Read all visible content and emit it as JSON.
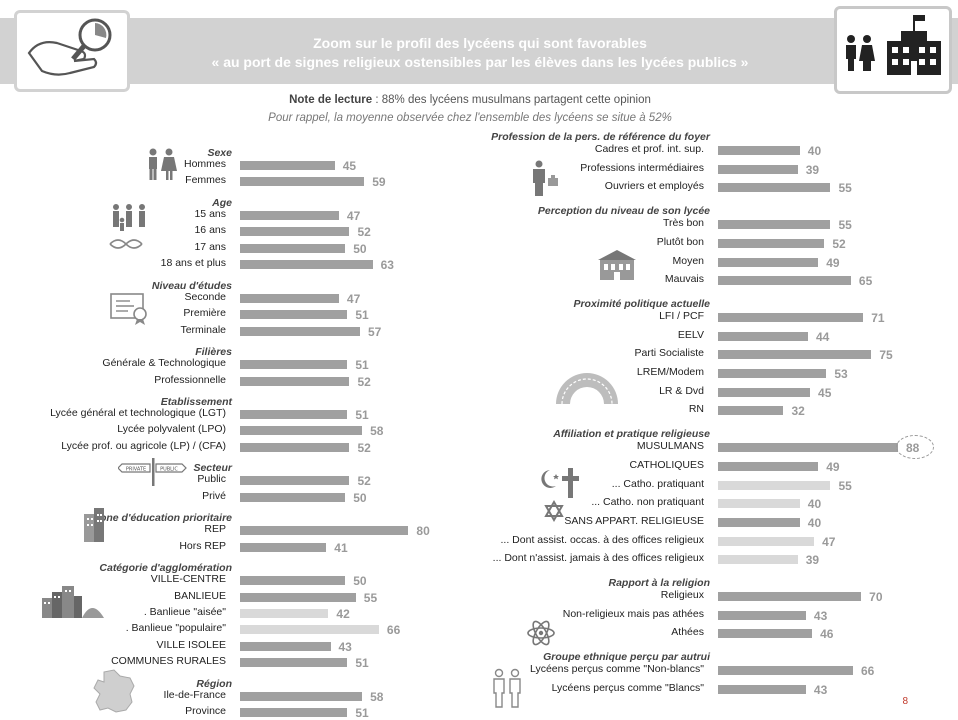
{
  "header": {
    "title_line1": "Zoom sur le profil des lycéens qui sont favorables",
    "title_line2": "« au port de signes religieux ostensibles par les élèves dans les lycées publics »"
  },
  "note": {
    "label": "Note de lecture",
    "text": " : 88% des lycéens musulmans partagent cette opinion",
    "reminder": "Pour rappel, la moyenne observée chez l'ensemble des lycéens se situe à 52%"
  },
  "page_number": "8",
  "chart_data": {
    "type": "bar",
    "orientation": "horizontal",
    "value_unit": "%",
    "xlim": [
      0,
      100
    ],
    "panels": [
      {
        "side": "left",
        "groups": [
          {
            "title": "Sexe",
            "rows": [
              {
                "label": "Hommes",
                "value": 45
              },
              {
                "label": "Femmes",
                "value": 59
              }
            ]
          },
          {
            "title": "Age",
            "rows": [
              {
                "label": "15 ans",
                "value": 47
              },
              {
                "label": "16 ans",
                "value": 52
              },
              {
                "label": "17 ans",
                "value": 50
              },
              {
                "label": "18 ans et plus",
                "value": 63
              }
            ]
          },
          {
            "title": "Niveau d'études",
            "rows": [
              {
                "label": "Seconde",
                "value": 47
              },
              {
                "label": "Première",
                "value": 51
              },
              {
                "label": "Terminale",
                "value": 57
              }
            ]
          },
          {
            "title": "Filières",
            "rows": [
              {
                "label": "Générale & Technologique",
                "value": 51
              },
              {
                "label": "Professionnelle",
                "value": 52
              }
            ]
          },
          {
            "title": "Etablissement",
            "rows": [
              {
                "label": "Lycée général et technologique (LGT)",
                "value": 51
              },
              {
                "label": "Lycée polyvalent (LPO)",
                "value": 58
              },
              {
                "label": "Lycée prof. ou agricole (LP) / (CFA)",
                "value": 52
              }
            ]
          },
          {
            "title": "Secteur",
            "rows": [
              {
                "label": "Public",
                "value": 52
              },
              {
                "label": "Privé",
                "value": 50
              }
            ]
          },
          {
            "title": "Zone d'éducation prioritaire",
            "rows": [
              {
                "label": "REP",
                "value": 80
              },
              {
                "label": "Hors REP",
                "value": 41
              }
            ]
          },
          {
            "title": "Catégorie d'agglomération",
            "rows": [
              {
                "label": "VILLE-CENTRE",
                "value": 50
              },
              {
                "label": "BANLIEUE",
                "value": 55
              },
              {
                "label": ". Banlieue \"aisée\"",
                "value": 42,
                "sub": true
              },
              {
                "label": ". Banlieue \"populaire\"",
                "value": 66,
                "sub": true
              },
              {
                "label": "VILLE ISOLEE",
                "value": 43
              },
              {
                "label": "COMMUNES RURALES",
                "value": 51
              }
            ]
          },
          {
            "title": "Région",
            "rows": [
              {
                "label": "Ile-de-France",
                "value": 58
              },
              {
                "label": "Province",
                "value": 51
              }
            ]
          }
        ]
      },
      {
        "side": "right",
        "groups": [
          {
            "title": "Profession de la pers. de référence du foyer",
            "rows": [
              {
                "label": "Cadres et prof. int. sup.",
                "value": 40
              },
              {
                "label": "Professions intermédiaires",
                "value": 39
              },
              {
                "label": "Ouvriers et employés",
                "value": 55
              }
            ]
          },
          {
            "title": "Perception du niveau de son lycée",
            "rows": [
              {
                "label": "Très bon",
                "value": 55
              },
              {
                "label": "Plutôt bon",
                "value": 52
              },
              {
                "label": "Moyen",
                "value": 49
              },
              {
                "label": "Mauvais",
                "value": 65
              }
            ]
          },
          {
            "title": "Proximité politique actuelle",
            "rows": [
              {
                "label": "LFI / PCF",
                "value": 71
              },
              {
                "label": "EELV",
                "value": 44
              },
              {
                "label": "Parti Socialiste",
                "value": 75
              },
              {
                "label": "LREM/Modem",
                "value": 53
              },
              {
                "label": "LR & Dvd",
                "value": 45
              },
              {
                "label": "RN",
                "value": 32
              }
            ]
          },
          {
            "title": "Affiliation et pratique religieuse",
            "rows": [
              {
                "label": "MUSULMANS",
                "value": 88,
                "highlight": true
              },
              {
                "label": "CATHOLIQUES",
                "value": 49
              },
              {
                "label": "... Catho. pratiquant",
                "value": 55,
                "sub": true
              },
              {
                "label": "... Catho. non pratiquant",
                "value": 40,
                "sub": true
              },
              {
                "label": "SANS APPART. RELIGIEUSE",
                "value": 40
              },
              {
                "label": "... Dont assist. occas. à des offices religieux",
                "value": 47,
                "sub": true
              },
              {
                "label": "... Dont n'assist. jamais à des offices religieux",
                "value": 39,
                "sub": true
              }
            ]
          },
          {
            "title": "Rapport à la religion",
            "rows": [
              {
                "label": "Religieux",
                "value": 70
              },
              {
                "label": "Non-religieux mais pas athées",
                "value": 43
              },
              {
                "label": "Athées",
                "value": 46
              }
            ]
          },
          {
            "title": "Groupe ethnique perçu par autrui",
            "rows": [
              {
                "label": "Lycéens perçus comme \"Non-blancs\"",
                "value": 66
              },
              {
                "label": "Lycéens perçus comme \"Blancs\"",
                "value": 43
              }
            ]
          }
        ]
      }
    ]
  },
  "icons": {
    "header_left": "magnifier-chart-icon",
    "header_right": "students-school-icon",
    "sexe": "man-woman-icon",
    "age": "family-dna-icon",
    "niveau": "diploma-icon",
    "secteur": "private-public-sign-icon",
    "zep": "city-building-icon",
    "agglomeration": "city-skyline-icon",
    "region": "france-map-icon",
    "profession": "workers-icon",
    "lycee": "school-building-icon",
    "politique": "hemicycle-icon",
    "religion": "religious-symbols-icon",
    "rapport_religion": "atom-icon",
    "ethnique": "people-outline-icon"
  }
}
